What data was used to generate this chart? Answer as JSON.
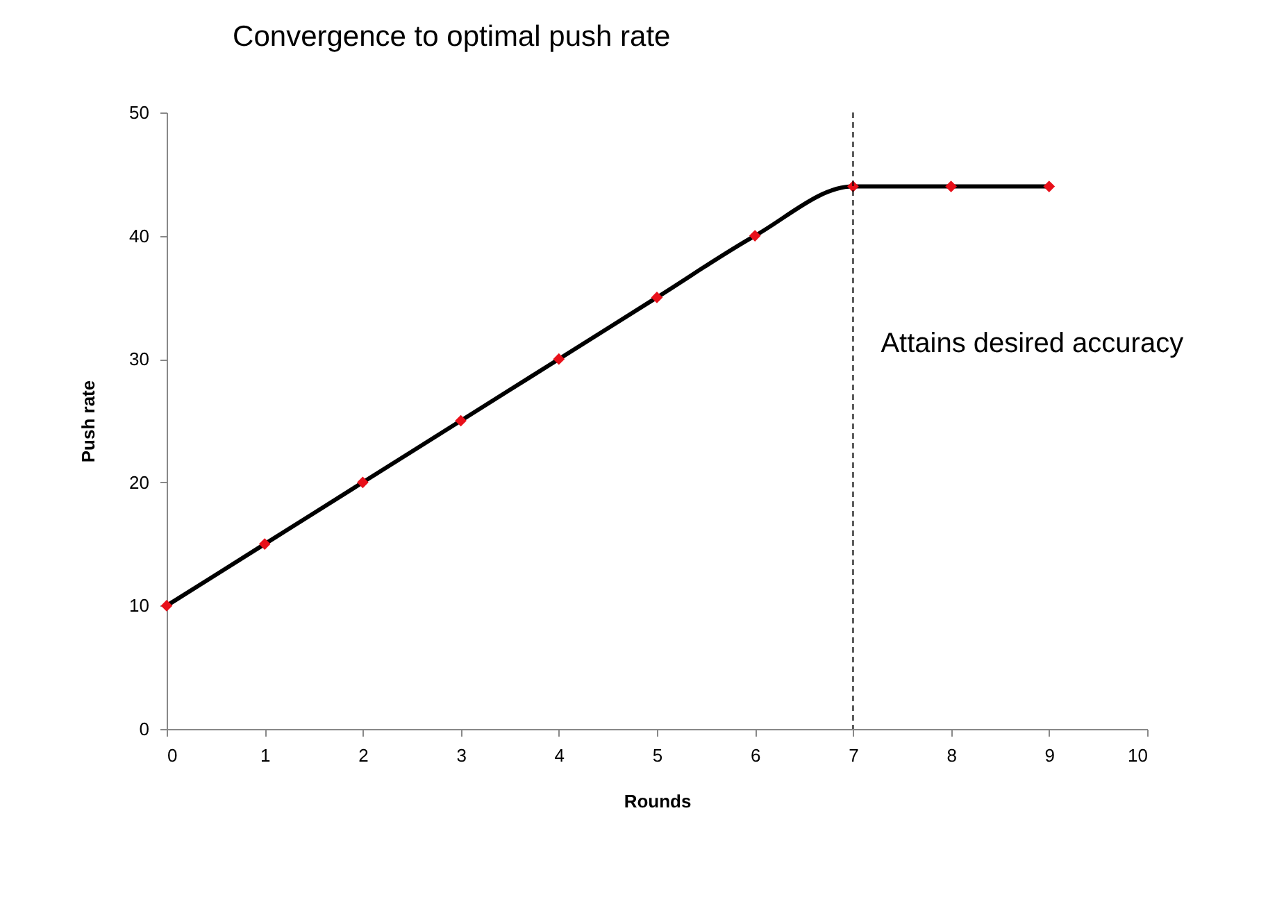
{
  "chart_data": {
    "type": "line",
    "title": "Convergence to optimal push rate",
    "xlabel": "Rounds",
    "ylabel": "Push rate",
    "x": [
      0,
      1,
      2,
      3,
      4,
      5,
      6,
      7,
      8,
      9
    ],
    "series": [
      {
        "color": "#000000",
        "colors": [
          "#e8101a",
          "#e8101a",
          "#e8101a",
          "#e8101a",
          "#e8101a",
          "#e8101a",
          "#e8101a",
          "#e8101a",
          "#e8101a",
          "#e8101a"
        ],
        "values": [
          10,
          15,
          20,
          25,
          30,
          35,
          40,
          44,
          44,
          44
        ]
      }
    ],
    "marker": "diamond",
    "line_style": "solid",
    "xlim": [
      0,
      10
    ],
    "xticks": [
      0,
      1,
      2,
      3,
      4,
      5,
      6,
      7,
      8,
      9,
      10
    ],
    "ylim": [
      0,
      50
    ],
    "yticks": [
      0,
      10,
      20,
      30,
      40,
      50
    ],
    "grid": false,
    "ref_lines": [
      {
        "axis": "x",
        "value": 7,
        "label": "Attains desired accuracy",
        "line_style": "dashed",
        "color": "#000000"
      }
    ]
  }
}
